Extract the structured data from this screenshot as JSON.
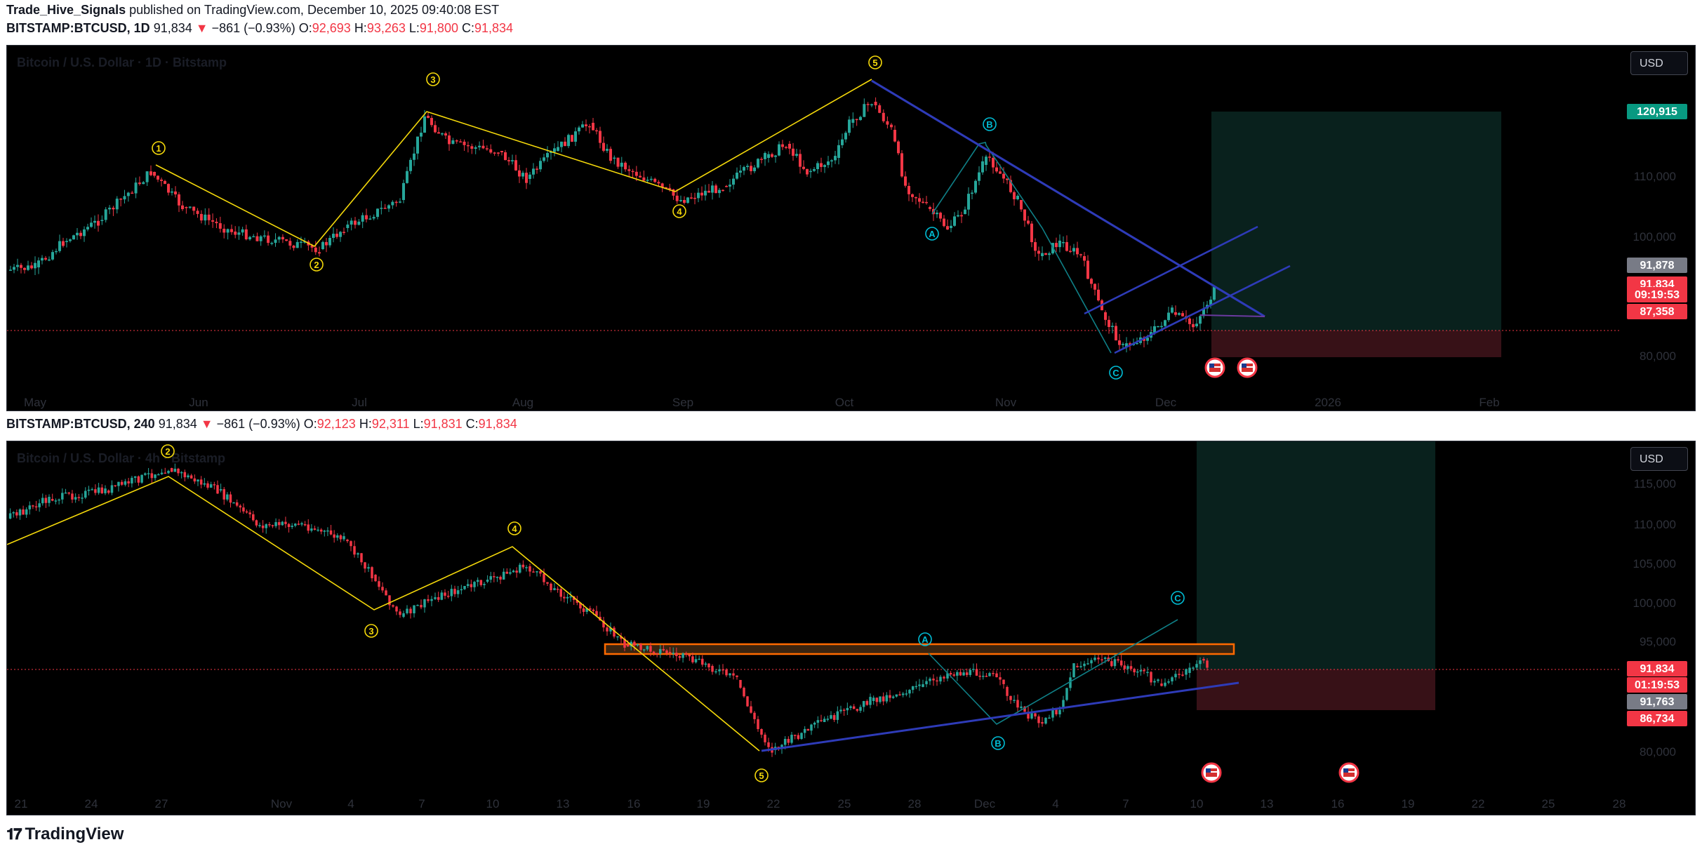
{
  "header": {
    "author": "Trade_Hive_Signals",
    "published": "published on TradingView.com, December 10, 2025 09:40:08 EST"
  },
  "panels": [
    {
      "symbol": "BITSTAMP:BTCUSD, 1D",
      "last": "91,834",
      "change": "−861 (−0.93%)",
      "o_label": "O:",
      "o": "92,693",
      "h_label": "H:",
      "h": "93,263",
      "l_label": "L:",
      "l": "91,800",
      "c_label": "C:",
      "c": "91,834",
      "watermark": "Bitcoin / U.S. Dollar · 1D · Bitstamp",
      "currency": "USD",
      "price_ticks": [
        "110,000",
        "100,000",
        "80,000"
      ],
      "time_ticks": [
        "May",
        "Jun",
        "Jul",
        "Aug",
        "Sep",
        "Oct",
        "Nov",
        "Dec",
        "2026",
        "Feb"
      ],
      "tags": [
        {
          "text": "120,915",
          "color": "#089981"
        },
        {
          "text": "91,878",
          "color": "#787b86"
        },
        {
          "text": "91,834",
          "color": "#f23645"
        },
        {
          "text": "09:19:53",
          "color": "#f23645"
        },
        {
          "text": "87,358",
          "color": "#f23645"
        }
      ],
      "wave_labels": [
        "1",
        "2",
        "3",
        "4",
        "5",
        "A",
        "B",
        "C"
      ]
    },
    {
      "symbol": "BITSTAMP:BTCUSD, 240",
      "last": "91,834",
      "change": "−861 (−0.93%)",
      "o_label": "O:",
      "o": "92,123",
      "h_label": "H:",
      "h": "92,311",
      "l_label": "L:",
      "l": "91,831",
      "c_label": "C:",
      "c": "91,834",
      "watermark": "Bitcoin / U.S. Dollar · 4h · Bitstamp",
      "currency": "USD",
      "price_ticks": [
        "115,000",
        "110,000",
        "105,000",
        "100,000",
        "95,000",
        "80,000"
      ],
      "time_ticks": [
        "21",
        "24",
        "27",
        "Nov",
        "4",
        "7",
        "10",
        "13",
        "16",
        "19",
        "22",
        "25",
        "28",
        "Dec",
        "4",
        "7",
        "10",
        "13",
        "16",
        "19",
        "22",
        "25",
        "28"
      ],
      "tags": [
        {
          "text": "91,834",
          "color": "#f23645"
        },
        {
          "text": "01:19:53",
          "color": "#f23645"
        },
        {
          "text": "91,763",
          "color": "#787b86"
        },
        {
          "text": "86,734",
          "color": "#f23645"
        }
      ],
      "wave_labels": [
        "2",
        "3",
        "4",
        "5",
        "A",
        "B",
        "C"
      ]
    }
  ],
  "colors": {
    "up": "#26a69a",
    "down": "#f23645",
    "wave": "#f5d90a",
    "abc": "#00bcd4",
    "trend": "#2e3bb8",
    "box": "#ff6a00"
  },
  "footer": {
    "brand": "TradingView"
  },
  "chart_data": [
    {
      "type": "candlestick",
      "timeframe": "1D",
      "x_range": [
        "May 2025",
        "Feb 2026"
      ],
      "last_price": 91834,
      "elliott_waves": [
        {
          "label": "1",
          "price": 111900
        },
        {
          "label": "2",
          "price": 98200
        },
        {
          "label": "3",
          "price": 123200
        },
        {
          "label": "4",
          "price": 107300
        },
        {
          "label": "5",
          "price": 126200
        },
        {
          "label": "A",
          "price": 103500
        },
        {
          "label": "B",
          "price": 116000
        },
        {
          "label": "C",
          "price": 80600
        }
      ],
      "position": {
        "target": 120915,
        "entry": 91834,
        "stop": 87358
      }
    },
    {
      "type": "candlestick",
      "timeframe": "240",
      "x_range": [
        "Oct 21 2025",
        "Dec 28 2025"
      ],
      "last_price": 91834,
      "elliott_waves": [
        {
          "label": "2",
          "price": 116000
        },
        {
          "label": "3",
          "price": 99000
        },
        {
          "label": "4",
          "price": 107000
        },
        {
          "label": "5",
          "price": 80600
        },
        {
          "label": "A",
          "price": 94000
        },
        {
          "label": "B",
          "price": 84000
        },
        {
          "label": "C",
          "price": 98000
        }
      ],
      "position": {
        "entry": 91834,
        "stop": 86734
      },
      "resistance_zone": [
        93800,
        95200
      ]
    }
  ]
}
